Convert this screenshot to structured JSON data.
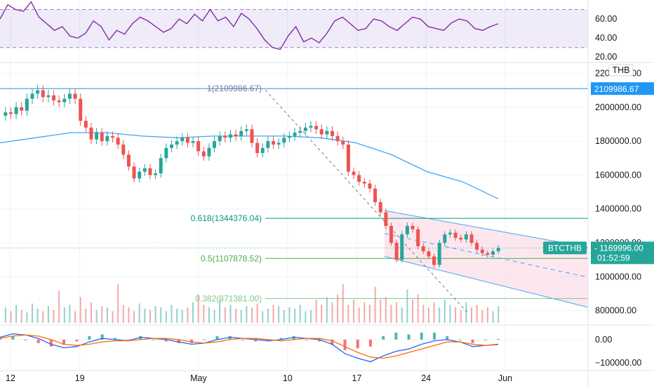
{
  "chart_data": [
    {
      "type": "line",
      "series": [
        {
          "values": [
            60,
            75,
            70,
            68,
            78,
            62,
            55,
            48,
            52,
            42,
            40,
            45,
            58,
            52,
            38,
            48,
            44,
            55,
            62,
            58,
            52,
            46,
            50,
            60,
            55,
            65,
            58,
            70,
            58,
            62,
            52,
            66,
            60,
            50,
            38,
            30,
            28,
            42,
            52,
            36,
            40,
            35,
            45,
            58,
            62,
            55,
            48,
            50,
            60,
            58,
            52,
            48,
            55,
            62,
            60,
            52,
            50,
            48,
            56,
            60,
            58,
            50,
            48,
            52,
            55
          ]
        }
      ],
      "y_ticks": [
        "60.00",
        "40.00",
        "20.00"
      ],
      "ylim": [
        15,
        80
      ],
      "band": [
        30,
        70
      ]
    },
    {
      "type": "candlestick",
      "currency": "THB",
      "symbol": "BTCTHB",
      "last_price": "1169996.00",
      "countdown": "01:52:59",
      "high_price_label": "2109986.67",
      "y_ticks": [
        "2200000.00",
        "2000000.00",
        "1800000.00",
        "1600000.00",
        "1400000.00",
        "1200000.00",
        "1000000.00",
        "800000.00"
      ],
      "ylim": [
        720000,
        2260000
      ],
      "fib_levels": [
        {
          "label": "1(2109986.67)",
          "value": 2109986.67,
          "color": "#787b86"
        },
        {
          "label": "0.618(1344376.04)",
          "value": 1344376.04,
          "color": "#089981"
        },
        {
          "label": "0.5(1107878.52)",
          "value": 1107878.52,
          "color": "#4caf50"
        },
        {
          "label": "0.382(871381.00)",
          "value": 871381.0,
          "color": "#81c784"
        }
      ],
      "close": [
        1970000,
        1960000,
        2000000,
        1980000,
        2050000,
        2080000,
        2100000,
        2060000,
        2070000,
        2040000,
        2030000,
        2050000,
        2080000,
        2050000,
        1920000,
        1880000,
        1810000,
        1850000,
        1800000,
        1830000,
        1820000,
        1780000,
        1720000,
        1650000,
        1580000,
        1620000,
        1640000,
        1600000,
        1610000,
        1700000,
        1760000,
        1780000,
        1800000,
        1820000,
        1790000,
        1800000,
        1740000,
        1710000,
        1760000,
        1800000,
        1830000,
        1820000,
        1840000,
        1830000,
        1860000,
        1870000,
        1790000,
        1730000,
        1760000,
        1800000,
        1780000,
        1790000,
        1820000,
        1830000,
        1850000,
        1860000,
        1880000,
        1890000,
        1870000,
        1840000,
        1860000,
        1830000,
        1800000,
        1780000,
        1620000,
        1600000,
        1560000,
        1550000,
        1520000,
        1440000,
        1380000,
        1300000,
        1200000,
        1100000,
        1250000,
        1300000,
        1280000,
        1180000,
        1150000,
        1120000,
        1070000,
        1200000,
        1250000,
        1260000,
        1230000,
        1220000,
        1250000,
        1200000,
        1160000,
        1140000,
        1130000,
        1150000,
        1170000
      ],
      "ma_line": [
        1790000,
        1820000,
        1850000,
        1850000,
        1830000,
        1820000,
        1830000,
        1830000,
        1830000,
        1820000,
        1790000,
        1720000,
        1620000,
        1560000,
        1460000
      ],
      "volume": [
        12,
        9,
        14,
        10,
        8,
        15,
        11,
        9,
        13,
        10,
        25,
        12,
        14,
        9,
        20,
        11,
        16,
        10,
        13,
        12,
        9,
        30,
        14,
        12,
        9,
        15,
        11,
        10,
        13,
        12,
        9,
        14,
        11,
        10,
        12,
        16,
        22,
        14,
        12,
        10,
        18,
        12,
        14,
        11,
        10,
        13,
        12,
        15,
        9,
        11,
        14,
        13,
        10,
        12,
        11,
        14,
        9,
        10,
        18,
        14,
        20,
        16,
        22,
        30,
        14,
        18,
        12,
        16,
        14,
        28,
        18,
        20,
        14,
        16,
        12,
        26,
        18,
        22,
        14,
        12,
        16,
        12,
        18,
        14,
        12,
        10,
        16,
        12,
        14,
        10,
        12,
        9,
        13
      ],
      "dates": [
        {
          "label": "12",
          "day": 0
        },
        {
          "label": "19",
          "day": 7
        },
        {
          "label": "May",
          "day": 19
        },
        {
          "label": "10",
          "day": 28
        },
        {
          "label": "17",
          "day": 35
        },
        {
          "label": "24",
          "day": 42
        },
        {
          "label": "Jun",
          "day": 50
        }
      ]
    },
    {
      "type": "line",
      "series": [
        {
          "values": [
            10000,
            25000,
            20000,
            5000,
            -20000,
            -35000,
            -30000,
            -10000,
            5000,
            0,
            -5000,
            10000,
            5000,
            0,
            -10000,
            -20000,
            -15000,
            0,
            10000,
            5000,
            0,
            -5000,
            0,
            10000,
            5000,
            0,
            -20000,
            -60000,
            -80000,
            -95000,
            -70000,
            -50000,
            -40000,
            -20000,
            -5000,
            0,
            -10000,
            -30000,
            -25000,
            -20000
          ]
        },
        {
          "values": [
            5000,
            15000,
            20000,
            15000,
            0,
            -20000,
            -25000,
            -20000,
            -10000,
            -5000,
            -5000,
            0,
            5000,
            5000,
            0,
            -10000,
            -15000,
            -10000,
            0,
            5000,
            5000,
            0,
            -5000,
            0,
            5000,
            5000,
            -5000,
            -30000,
            -55000,
            -75000,
            -80000,
            -70000,
            -55000,
            -40000,
            -25000,
            -10000,
            -10000,
            -20000,
            -25000,
            -22000
          ]
        }
      ],
      "y_ticks": [
        "0.00",
        "−100000.00"
      ],
      "ylim": [
        -130000,
        60000
      ]
    }
  ]
}
